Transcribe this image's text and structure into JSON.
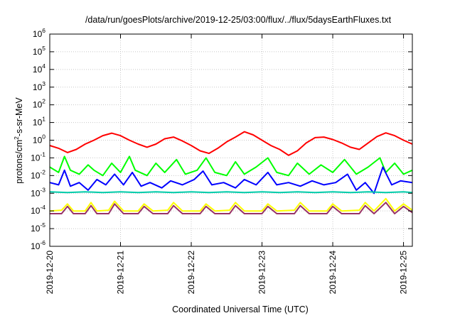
{
  "chart_data": {
    "type": "line",
    "title": "/data/run/goesPlots/archive/2019-12-25/03:00/flux/../flux/5daysEarthFluxes.txt",
    "xlabel": "Coordinated Universal Time (UTC)",
    "ylabel": {
      "base": "protons/cm",
      "sup": "2",
      "rest": "-s-sr-MeV"
    },
    "y_scale": "log",
    "ylim": [
      1e-06,
      1000000.0
    ],
    "y_ticks": [
      {
        "base": "10",
        "exp": "-6",
        "value": 1e-06
      },
      {
        "base": "10",
        "exp": "-5",
        "value": 1e-05
      },
      {
        "base": "10",
        "exp": "-4",
        "value": 0.0001
      },
      {
        "base": "10",
        "exp": "-3",
        "value": 0.001
      },
      {
        "base": "10",
        "exp": "-2",
        "value": 0.01
      },
      {
        "base": "10",
        "exp": "-1",
        "value": 0.1
      },
      {
        "base": "10",
        "exp": "0",
        "value": 1
      },
      {
        "base": "10",
        "exp": "1",
        "value": 10.0
      },
      {
        "base": "10",
        "exp": "2",
        "value": 100.0
      },
      {
        "base": "10",
        "exp": "3",
        "value": 1000.0
      },
      {
        "base": "10",
        "exp": "4",
        "value": 10000.0
      },
      {
        "base": "10",
        "exp": "5",
        "value": 100000.0
      },
      {
        "base": "10",
        "exp": "6",
        "value": 1000000.0
      }
    ],
    "xlim": [
      "2019-12-20T00:00",
      "2019-12-25T03:00"
    ],
    "x_ticks": [
      "2019-12-20",
      "2019-12-21",
      "2019-12-22",
      "2019-12-23",
      "2019-12-24",
      "2019-12-25"
    ],
    "grid": true,
    "series": [
      {
        "color": "#ff0000",
        "points": [
          [
            "2019-12-20T00:00",
            0.5
          ],
          [
            "2019-12-20T03:00",
            0.35
          ],
          [
            "2019-12-20T06:00",
            0.2
          ],
          [
            "2019-12-20T09:00",
            0.3
          ],
          [
            "2019-12-20T12:00",
            0.6
          ],
          [
            "2019-12-20T15:00",
            1.0
          ],
          [
            "2019-12-20T18:00",
            1.8
          ],
          [
            "2019-12-20T21:00",
            2.5
          ],
          [
            "2019-12-21T00:00",
            1.8
          ],
          [
            "2019-12-21T03:00",
            1.0
          ],
          [
            "2019-12-21T06:00",
            0.6
          ],
          [
            "2019-12-21T09:00",
            0.4
          ],
          [
            "2019-12-21T12:00",
            0.6
          ],
          [
            "2019-12-21T15:00",
            1.2
          ],
          [
            "2019-12-21T18:00",
            1.5
          ],
          [
            "2019-12-21T21:00",
            0.9
          ],
          [
            "2019-12-22T00:00",
            0.5
          ],
          [
            "2019-12-22T03:00",
            0.25
          ],
          [
            "2019-12-22T06:00",
            0.18
          ],
          [
            "2019-12-22T09:00",
            0.35
          ],
          [
            "2019-12-22T12:00",
            0.8
          ],
          [
            "2019-12-22T15:00",
            1.5
          ],
          [
            "2019-12-22T18:00",
            3.0
          ],
          [
            "2019-12-22T21:00",
            2.0
          ],
          [
            "2019-12-23T00:00",
            1.0
          ],
          [
            "2019-12-23T03:00",
            0.5
          ],
          [
            "2019-12-23T06:00",
            0.3
          ],
          [
            "2019-12-23T09:00",
            0.14
          ],
          [
            "2019-12-23T12:00",
            0.25
          ],
          [
            "2019-12-23T15:00",
            0.7
          ],
          [
            "2019-12-23T18:00",
            1.4
          ],
          [
            "2019-12-23T21:00",
            1.5
          ],
          [
            "2019-12-24T00:00",
            1.1
          ],
          [
            "2019-12-24T03:00",
            0.7
          ],
          [
            "2019-12-24T06:00",
            0.4
          ],
          [
            "2019-12-24T09:00",
            0.3
          ],
          [
            "2019-12-24T12:00",
            0.7
          ],
          [
            "2019-12-24T15:00",
            1.6
          ],
          [
            "2019-12-24T18:00",
            2.6
          ],
          [
            "2019-12-24T21:00",
            1.8
          ],
          [
            "2019-12-25T00:00",
            1.0
          ],
          [
            "2019-12-25T03:00",
            0.6
          ]
        ]
      },
      {
        "color": "#00ff00",
        "points": [
          [
            "2019-12-20T00:00",
            0.03
          ],
          [
            "2019-12-20T03:00",
            0.015
          ],
          [
            "2019-12-20T05:00",
            0.12
          ],
          [
            "2019-12-20T07:00",
            0.02
          ],
          [
            "2019-12-20T10:00",
            0.012
          ],
          [
            "2019-12-20T13:00",
            0.04
          ],
          [
            "2019-12-20T15:00",
            0.02
          ],
          [
            "2019-12-20T18:00",
            0.01
          ],
          [
            "2019-12-20T21:00",
            0.05
          ],
          [
            "2019-12-21T00:00",
            0.015
          ],
          [
            "2019-12-21T03:00",
            0.12
          ],
          [
            "2019-12-21T05:00",
            0.02
          ],
          [
            "2019-12-21T09:00",
            0.01
          ],
          [
            "2019-12-21T12:00",
            0.05
          ],
          [
            "2019-12-21T15:00",
            0.015
          ],
          [
            "2019-12-21T19:00",
            0.08
          ],
          [
            "2019-12-21T22:00",
            0.012
          ],
          [
            "2019-12-22T02:00",
            0.02
          ],
          [
            "2019-12-22T05:00",
            0.1
          ],
          [
            "2019-12-22T08:00",
            0.015
          ],
          [
            "2019-12-22T12:00",
            0.01
          ],
          [
            "2019-12-22T15:00",
            0.06
          ],
          [
            "2019-12-22T18:00",
            0.012
          ],
          [
            "2019-12-22T22:00",
            0.03
          ],
          [
            "2019-12-23T02:00",
            0.1
          ],
          [
            "2019-12-23T05:00",
            0.015
          ],
          [
            "2019-12-23T09:00",
            0.01
          ],
          [
            "2019-12-23T12:00",
            0.05
          ],
          [
            "2019-12-23T16:00",
            0.012
          ],
          [
            "2019-12-23T20:00",
            0.04
          ],
          [
            "2019-12-24T00:00",
            0.015
          ],
          [
            "2019-12-24T04:00",
            0.08
          ],
          [
            "2019-12-24T08:00",
            0.012
          ],
          [
            "2019-12-24T12:00",
            0.03
          ],
          [
            "2019-12-24T16:00",
            0.1
          ],
          [
            "2019-12-24T18:00",
            0.015
          ],
          [
            "2019-12-24T21:00",
            0.05
          ],
          [
            "2019-12-25T00:00",
            0.012
          ],
          [
            "2019-12-25T03:00",
            0.02
          ]
        ]
      },
      {
        "color": "#0000ff",
        "points": [
          [
            "2019-12-20T00:00",
            0.004
          ],
          [
            "2019-12-20T03:00",
            0.003
          ],
          [
            "2019-12-20T05:00",
            0.02
          ],
          [
            "2019-12-20T07:00",
            0.0025
          ],
          [
            "2019-12-20T10:00",
            0.004
          ],
          [
            "2019-12-20T13:00",
            0.0015
          ],
          [
            "2019-12-20T16:00",
            0.006
          ],
          [
            "2019-12-20T19:00",
            0.003
          ],
          [
            "2019-12-20T22:00",
            0.012
          ],
          [
            "2019-12-21T01:00",
            0.003
          ],
          [
            "2019-12-21T04:00",
            0.015
          ],
          [
            "2019-12-21T07:00",
            0.0025
          ],
          [
            "2019-12-21T10:00",
            0.004
          ],
          [
            "2019-12-21T14:00",
            0.002
          ],
          [
            "2019-12-21T17:00",
            0.005
          ],
          [
            "2019-12-21T21:00",
            0.003
          ],
          [
            "2019-12-22T01:00",
            0.006
          ],
          [
            "2019-12-22T04:00",
            0.018
          ],
          [
            "2019-12-22T07:00",
            0.003
          ],
          [
            "2019-12-22T11:00",
            0.004
          ],
          [
            "2019-12-22T15:00",
            0.002
          ],
          [
            "2019-12-22T18:00",
            0.006
          ],
          [
            "2019-12-22T22:00",
            0.003
          ],
          [
            "2019-12-23T02:00",
            0.015
          ],
          [
            "2019-12-23T05:00",
            0.003
          ],
          [
            "2019-12-23T09:00",
            0.004
          ],
          [
            "2019-12-23T13:00",
            0.0025
          ],
          [
            "2019-12-23T17:00",
            0.005
          ],
          [
            "2019-12-23T21:00",
            0.003
          ],
          [
            "2019-12-24T01:00",
            0.004
          ],
          [
            "2019-12-24T05:00",
            0.012
          ],
          [
            "2019-12-24T08:00",
            0.0015
          ],
          [
            "2019-12-24T11:00",
            0.004
          ],
          [
            "2019-12-24T14:00",
            0.001
          ],
          [
            "2019-12-24T17:00",
            0.03
          ],
          [
            "2019-12-24T20:00",
            0.003
          ],
          [
            "2019-12-24T23:00",
            0.005
          ],
          [
            "2019-12-25T03:00",
            0.004
          ]
        ]
      },
      {
        "color": "#00ccaa",
        "points": [
          [
            "2019-12-20T00:00",
            0.0012
          ],
          [
            "2019-12-20T06:00",
            0.0011
          ],
          [
            "2019-12-20T12:00",
            0.0012
          ],
          [
            "2019-12-20T18:00",
            0.0011
          ],
          [
            "2019-12-21T00:00",
            0.0012
          ],
          [
            "2019-12-21T06:00",
            0.0011
          ],
          [
            "2019-12-21T12:00",
            0.0012
          ],
          [
            "2019-12-21T18:00",
            0.0011
          ],
          [
            "2019-12-22T00:00",
            0.0012
          ],
          [
            "2019-12-22T06:00",
            0.0011
          ],
          [
            "2019-12-22T12:00",
            0.0012
          ],
          [
            "2019-12-22T18:00",
            0.0011
          ],
          [
            "2019-12-23T00:00",
            0.0012
          ],
          [
            "2019-12-23T06:00",
            0.0011
          ],
          [
            "2019-12-23T12:00",
            0.0012
          ],
          [
            "2019-12-23T18:00",
            0.0011
          ],
          [
            "2019-12-24T00:00",
            0.0012
          ],
          [
            "2019-12-24T06:00",
            0.0011
          ],
          [
            "2019-12-24T12:00",
            0.0012
          ],
          [
            "2019-12-24T18:00",
            0.0011
          ],
          [
            "2019-12-25T00:00",
            0.0012
          ],
          [
            "2019-12-25T03:00",
            0.0011
          ]
        ]
      },
      {
        "color": "#ffff00",
        "points": [
          [
            "2019-12-20T00:00",
            0.0001
          ],
          [
            "2019-12-20T04:00",
            0.00011
          ],
          [
            "2019-12-20T06:00",
            0.00025
          ],
          [
            "2019-12-20T08:00",
            0.0001
          ],
          [
            "2019-12-20T12:00",
            0.0001
          ],
          [
            "2019-12-20T14:00",
            0.0003
          ],
          [
            "2019-12-20T16:00",
            0.0001
          ],
          [
            "2019-12-20T20:00",
            0.00011
          ],
          [
            "2019-12-20T22:00",
            0.00035
          ],
          [
            "2019-12-21T01:00",
            0.0001
          ],
          [
            "2019-12-21T06:00",
            0.0001
          ],
          [
            "2019-12-21T08:00",
            0.00025
          ],
          [
            "2019-12-21T11:00",
            0.0001
          ],
          [
            "2019-12-21T16:00",
            0.00011
          ],
          [
            "2019-12-21T18:00",
            0.0003
          ],
          [
            "2019-12-21T21:00",
            0.0001
          ],
          [
            "2019-12-22T03:00",
            0.0001
          ],
          [
            "2019-12-22T05:00",
            0.00025
          ],
          [
            "2019-12-22T08:00",
            0.0001
          ],
          [
            "2019-12-22T13:00",
            0.00011
          ],
          [
            "2019-12-22T15:00",
            0.0003
          ],
          [
            "2019-12-22T18:00",
            0.0001
          ],
          [
            "2019-12-23T00:00",
            0.0001
          ],
          [
            "2019-12-23T02:00",
            0.00025
          ],
          [
            "2019-12-23T05:00",
            0.0001
          ],
          [
            "2019-12-23T11:00",
            0.00011
          ],
          [
            "2019-12-23T13:00",
            0.0003
          ],
          [
            "2019-12-23T16:00",
            0.0001
          ],
          [
            "2019-12-23T22:00",
            0.0001
          ],
          [
            "2019-12-24T00:00",
            0.00025
          ],
          [
            "2019-12-24T03:00",
            0.0001
          ],
          [
            "2019-12-24T09:00",
            0.00011
          ],
          [
            "2019-12-24T11:00",
            0.0003
          ],
          [
            "2019-12-24T14:00",
            0.0001
          ],
          [
            "2019-12-24T18:00",
            0.0005
          ],
          [
            "2019-12-24T21:00",
            0.0001
          ],
          [
            "2019-12-25T00:00",
            0.00025
          ],
          [
            "2019-12-25T03:00",
            0.00011
          ]
        ]
      },
      {
        "color": "#993366",
        "points": [
          [
            "2019-12-20T00:00",
            7e-05
          ],
          [
            "2019-12-20T04:00",
            7e-05
          ],
          [
            "2019-12-20T06:00",
            0.00018
          ],
          [
            "2019-12-20T08:00",
            7e-05
          ],
          [
            "2019-12-20T12:00",
            7e-05
          ],
          [
            "2019-12-20T14:00",
            0.0002
          ],
          [
            "2019-12-20T16:00",
            7e-05
          ],
          [
            "2019-12-20T20:00",
            7e-05
          ],
          [
            "2019-12-20T22:00",
            0.00025
          ],
          [
            "2019-12-21T01:00",
            7e-05
          ],
          [
            "2019-12-21T06:00",
            7e-05
          ],
          [
            "2019-12-21T08:00",
            0.00018
          ],
          [
            "2019-12-21T11:00",
            7e-05
          ],
          [
            "2019-12-21T16:00",
            7e-05
          ],
          [
            "2019-12-21T18:00",
            0.0002
          ],
          [
            "2019-12-21T21:00",
            7e-05
          ],
          [
            "2019-12-22T03:00",
            7e-05
          ],
          [
            "2019-12-22T05:00",
            0.00018
          ],
          [
            "2019-12-22T08:00",
            7e-05
          ],
          [
            "2019-12-22T13:00",
            7e-05
          ],
          [
            "2019-12-22T15:00",
            0.0002
          ],
          [
            "2019-12-22T18:00",
            7e-05
          ],
          [
            "2019-12-23T00:00",
            7e-05
          ],
          [
            "2019-12-23T02:00",
            0.00018
          ],
          [
            "2019-12-23T05:00",
            7e-05
          ],
          [
            "2019-12-23T11:00",
            7e-05
          ],
          [
            "2019-12-23T13:00",
            0.0002
          ],
          [
            "2019-12-23T16:00",
            7e-05
          ],
          [
            "2019-12-23T22:00",
            7e-05
          ],
          [
            "2019-12-24T00:00",
            0.00018
          ],
          [
            "2019-12-24T03:00",
            7e-05
          ],
          [
            "2019-12-24T09:00",
            7e-05
          ],
          [
            "2019-12-24T11:00",
            0.0002
          ],
          [
            "2019-12-24T14:00",
            7e-05
          ],
          [
            "2019-12-24T18:00",
            0.0003
          ],
          [
            "2019-12-24T21:00",
            7e-05
          ],
          [
            "2019-12-25T00:00",
            0.00018
          ],
          [
            "2019-12-25T03:00",
            8e-05
          ]
        ]
      }
    ]
  }
}
